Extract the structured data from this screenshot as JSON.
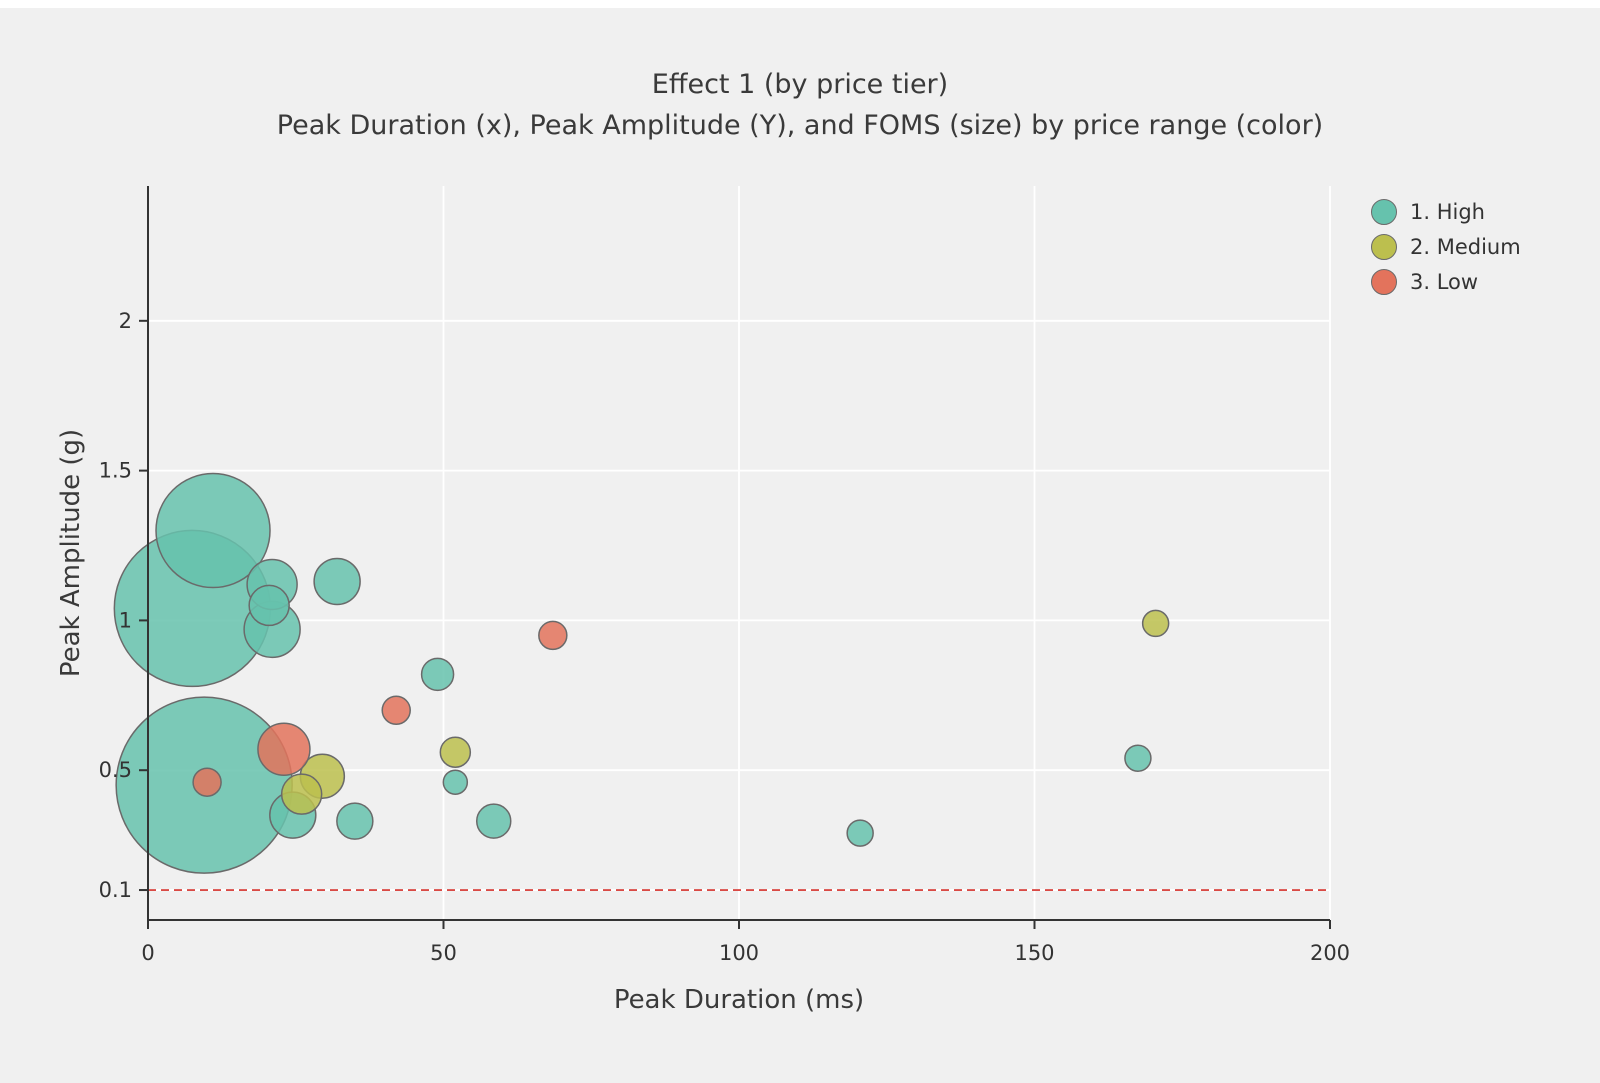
{
  "chart_data": {
    "type": "scatter",
    "title": "Effect 1 (by price tier)",
    "subtitle": "Peak Duration (x), Peak Amplitude (Y), and FOMS (size) by price range (color)",
    "xlabel": "Peak Duration (ms)",
    "ylabel": "Peak Amplitude (g)",
    "xlim": [
      0,
      200
    ],
    "ylim": [
      0,
      2.45
    ],
    "xticks": [
      {
        "value": 0,
        "label": "0"
      },
      {
        "value": 50,
        "label": "50"
      },
      {
        "value": 100,
        "label": "100"
      },
      {
        "value": 150,
        "label": "150"
      },
      {
        "value": 200,
        "label": "200"
      }
    ],
    "yticks": [
      {
        "value": 0.1,
        "label": "0.1"
      },
      {
        "value": 0.5,
        "label": "0.5"
      },
      {
        "value": 1,
        "label": "1"
      },
      {
        "value": 1.5,
        "label": "1.5"
      },
      {
        "value": 2,
        "label": "2"
      }
    ],
    "grid": true,
    "grid_color": "#ffffff",
    "background": "#f0f0f0",
    "axis_color": "#333333",
    "bubble_stroke": "#6a6a6a",
    "reference_line": {
      "y": 0.1,
      "color": "#d94a45",
      "style": "dashed"
    },
    "legend_position": "top-right",
    "series": [
      {
        "name": "1. High",
        "color": "#66c2ad",
        "points": [
          {
            "x": 11,
            "y": 1.3,
            "r": 57
          },
          {
            "x": 7.5,
            "y": 1.04,
            "r": 78
          },
          {
            "x": 21,
            "y": 1.12,
            "r": 25
          },
          {
            "x": 20.5,
            "y": 1.05,
            "r": 20
          },
          {
            "x": 21,
            "y": 0.97,
            "r": 28
          },
          {
            "x": 32,
            "y": 1.13,
            "r": 23
          },
          {
            "x": 49,
            "y": 0.82,
            "r": 16
          },
          {
            "x": 9.5,
            "y": 0.45,
            "r": 88
          },
          {
            "x": 24.5,
            "y": 0.35,
            "r": 23
          },
          {
            "x": 35,
            "y": 0.33,
            "r": 18
          },
          {
            "x": 52,
            "y": 0.46,
            "r": 12
          },
          {
            "x": 58.5,
            "y": 0.33,
            "r": 17
          },
          {
            "x": 120.5,
            "y": 0.29,
            "r": 13
          },
          {
            "x": 167.5,
            "y": 0.54,
            "r": 13
          }
        ]
      },
      {
        "name": "2. Medium",
        "color": "#bcbf4e",
        "points": [
          {
            "x": 29.5,
            "y": 0.48,
            "r": 22
          },
          {
            "x": 26,
            "y": 0.42,
            "r": 20
          },
          {
            "x": 52,
            "y": 0.56,
            "r": 15
          },
          {
            "x": 170.5,
            "y": 0.99,
            "r": 13
          }
        ]
      },
      {
        "name": "3. Low",
        "color": "#e3735c",
        "points": [
          {
            "x": 23,
            "y": 0.57,
            "r": 26
          },
          {
            "x": 10,
            "y": 0.46,
            "r": 14
          },
          {
            "x": 42,
            "y": 0.7,
            "r": 14
          },
          {
            "x": 68.5,
            "y": 0.95,
            "r": 14
          }
        ]
      }
    ]
  }
}
